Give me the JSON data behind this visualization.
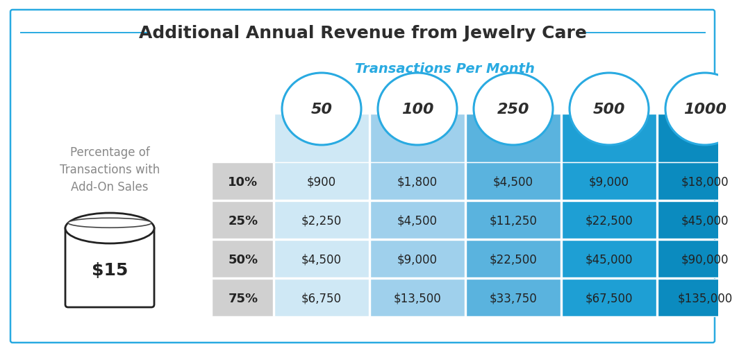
{
  "title": "Additional Annual Revenue from Jewelry Care",
  "subtitle": "Transactions Per Month",
  "transactions": [
    "50",
    "100",
    "250",
    "500",
    "1000"
  ],
  "percentages": [
    "10%",
    "25%",
    "50%",
    "75%"
  ],
  "values": [
    [
      "$900",
      "$1,800",
      "$4,500",
      "$9,000",
      "$18,000"
    ],
    [
      "$2,250",
      "$4,500",
      "$11,250",
      "$22,500",
      "$45,000"
    ],
    [
      "$4,500",
      "$9,000",
      "$22,500",
      "$45,000",
      "$90,000"
    ],
    [
      "$6,750",
      "$13,500",
      "$33,750",
      "$67,500",
      "$135,000"
    ]
  ],
  "col_colors": [
    "#cfe8f5",
    "#9fd0ec",
    "#5ab3de",
    "#1e9fd4",
    "#0b8bbf"
  ],
  "pct_col_color": "#d0d0d0",
  "title_color": "#2d2d2d",
  "subtitle_color": "#29aae1",
  "border_color": "#29aae1",
  "circle_border_color": "#29aae1",
  "price_label": "$15",
  "left_label_lines": [
    "Percentage of",
    "Transactions with",
    "Add-On Sales"
  ],
  "left_label_color": "#888888"
}
